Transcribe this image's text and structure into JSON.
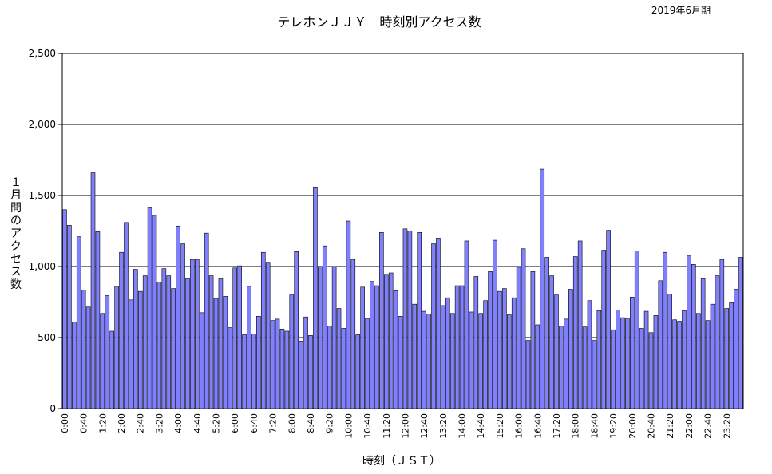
{
  "chart_data": {
    "type": "bar",
    "title": "テレホンＪＪＹ　時刻別アクセス数",
    "period": "2019年6月期",
    "xlabel": "時刻（ＪＳＴ）",
    "ylabel": "１月間のアクセス数",
    "ylim": [
      0,
      2500
    ],
    "yticks": [
      "0",
      "500",
      "1,000",
      "1,500",
      "2,000",
      "2,500"
    ],
    "ytick_values": [
      0,
      500,
      1000,
      1500,
      2000,
      2500
    ],
    "grid": true,
    "bar_color": "#8080ff",
    "xtick_labels": [
      "0:00",
      "0:40",
      "1:20",
      "2:00",
      "2:40",
      "3:20",
      "4:00",
      "4:40",
      "5:20",
      "6:00",
      "6:40",
      "7:20",
      "8:00",
      "8:40",
      "9:20",
      "10:00",
      "10:40",
      "11:20",
      "12:00",
      "12:40",
      "13:20",
      "14:00",
      "14:40",
      "15:20",
      "16:00",
      "16:40",
      "17:20",
      "18:00",
      "18:40",
      "19:20",
      "20:00",
      "20:40",
      "21:20",
      "22:00",
      "22:40",
      "23:20"
    ],
    "values": [
      1400,
      1290,
      610,
      1210,
      835,
      715,
      1660,
      1245,
      670,
      795,
      545,
      860,
      1100,
      1310,
      765,
      980,
      825,
      935,
      1415,
      1360,
      890,
      985,
      935,
      845,
      1285,
      1160,
      915,
      1050,
      1050,
      675,
      1235,
      935,
      775,
      915,
      790,
      570,
      990,
      1005,
      520,
      860,
      525,
      650,
      1100,
      1030,
      620,
      630,
      560,
      545,
      800,
      1105,
      475,
      645,
      515,
      1560,
      1000,
      1145,
      580,
      1000,
      705,
      565,
      1320,
      1050,
      520,
      855,
      635,
      895,
      865,
      1240,
      945,
      955,
      830,
      650,
      1265,
      1250,
      735,
      1240,
      685,
      665,
      1160,
      1200,
      725,
      780,
      670,
      865,
      865,
      1180,
      680,
      930,
      670,
      760,
      965,
      1185,
      825,
      845,
      660,
      780,
      995,
      1125,
      480,
      965,
      590,
      1685,
      1065,
      935,
      800,
      580,
      630,
      840,
      1070,
      1180,
      575,
      760,
      480,
      690,
      1115,
      1255,
      555,
      695,
      640,
      635,
      785,
      1110,
      565,
      685,
      535,
      655,
      900,
      1100,
      805,
      625,
      615,
      690,
      1075,
      1015,
      670,
      915,
      620,
      735,
      935,
      1050,
      705,
      745,
      840,
      1065
    ]
  }
}
